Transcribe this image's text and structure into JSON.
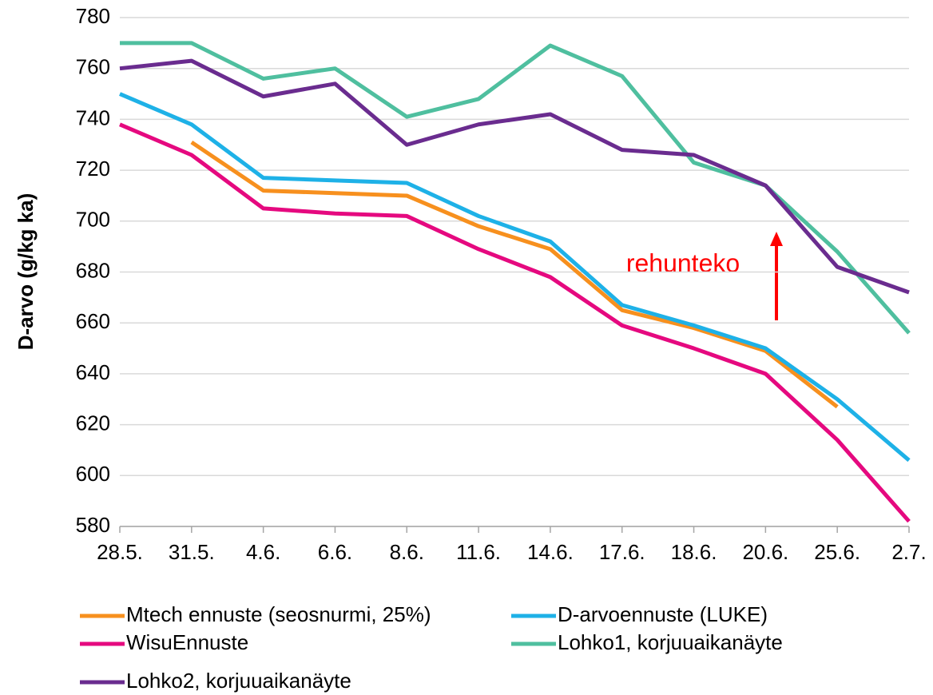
{
  "chart_data": {
    "type": "line",
    "y_label": "D-arvo (g/kg ka)",
    "annotation": "rehunteko",
    "categories": [
      "28.5.",
      "31.5.",
      "4.6.",
      "6.6.",
      "8.6.",
      "11.6.",
      "14.6.",
      "17.6.",
      "18.6.",
      "20.6.",
      "25.6.",
      "2.7."
    ],
    "series": [
      {
        "name": "Mtech ennuste (seosnurmi, 25%)",
        "color": "#f7901e",
        "values": [
          null,
          731,
          712,
          711,
          710,
          698,
          689,
          665,
          658,
          649,
          627,
          null
        ]
      },
      {
        "name": "D-arvoennuste (LUKE)",
        "color": "#1eb1e7",
        "values": [
          750,
          738,
          717,
          716,
          715,
          702,
          692,
          667,
          659,
          650,
          630,
          606
        ]
      },
      {
        "name": "WisuEnnuste",
        "color": "#e5097f",
        "values": [
          738,
          726,
          705,
          703,
          702,
          689,
          678,
          659,
          650,
          640,
          614,
          582
        ]
      },
      {
        "name": "Lohko1, korjuuaikanäyte",
        "color": "#4fbf9f",
        "values": [
          770,
          770,
          756,
          760,
          741,
          748,
          769,
          757,
          723,
          714,
          688,
          656
        ]
      },
      {
        "name": "Lohko2, korjuuaikanäyte",
        "color": "#6a2c8f",
        "values": [
          760,
          763,
          749,
          754,
          730,
          738,
          742,
          728,
          726,
          714,
          682,
          672
        ]
      }
    ],
    "ylim": [
      580,
      780
    ],
    "yticks": [
      580,
      600,
      620,
      640,
      660,
      680,
      700,
      720,
      740,
      760,
      780
    ],
    "grid": true,
    "legend": "bottom"
  }
}
